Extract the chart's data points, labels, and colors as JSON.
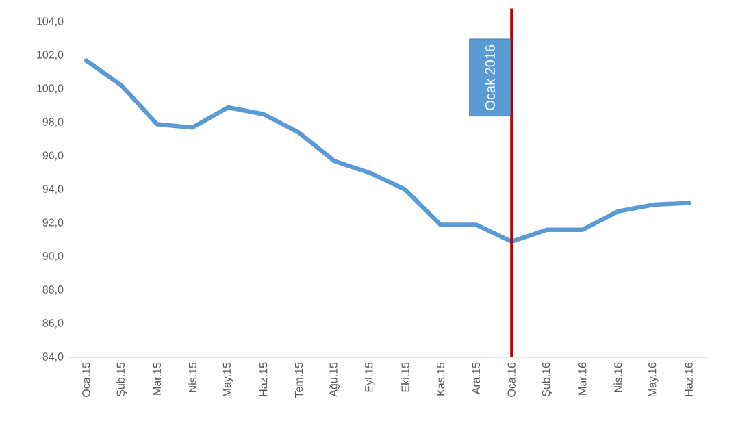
{
  "chart_data": {
    "type": "line",
    "categories": [
      "Oca.15",
      "Şub.15",
      "Mar.15",
      "Nis.15",
      "May.15",
      "Haz.15",
      "Tem.15",
      "Ağu.15",
      "Eyl.15",
      "Eki.15",
      "Kas.15",
      "Ara.15",
      "Oca.16",
      "Şub.16",
      "Mar.16",
      "Nis.16",
      "May.16",
      "Haz.16"
    ],
    "series": [
      {
        "color": "#5b9bd5",
        "values": [
          101.7,
          100.2,
          97.9,
          97.7,
          98.9,
          98.5,
          97.4,
          95.7,
          95.0,
          94.0,
          91.9,
          91.9,
          90.9,
          91.6,
          91.6,
          92.7,
          93.1,
          93.2
        ]
      }
    ],
    "ylim": [
      84,
      104
    ],
    "yticks": [
      {
        "value": 84,
        "label": "84,0"
      },
      {
        "value": 86,
        "label": "86,0"
      },
      {
        "value": 88,
        "label": "88,0"
      },
      {
        "value": 90,
        "label": "90,0"
      },
      {
        "value": 92,
        "label": "92,0"
      },
      {
        "value": 94,
        "label": "94,0"
      },
      {
        "value": 96,
        "label": "96,0"
      },
      {
        "value": 98,
        "label": "98,0"
      },
      {
        "value": 100,
        "label": "100,0"
      },
      {
        "value": 102,
        "label": "102,0"
      },
      {
        "value": 104,
        "label": "104,0"
      }
    ],
    "ref_lines": [
      {
        "axis": "x",
        "value": "Oca.16",
        "label": "Ocak 2016",
        "color": "#c00000"
      }
    ],
    "marker": "none",
    "line_style": "solid"
  }
}
